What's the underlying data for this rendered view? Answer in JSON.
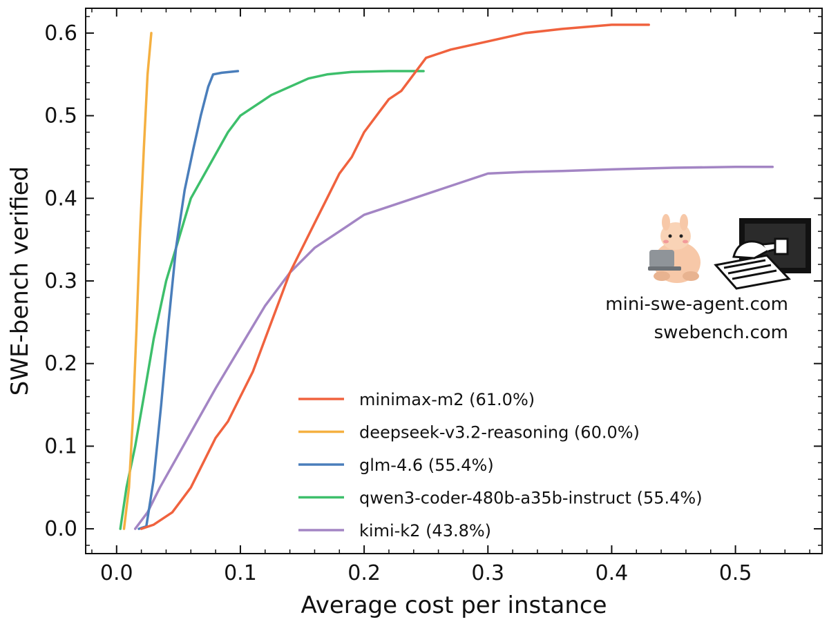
{
  "chart_data": {
    "type": "line",
    "xlabel": "Average cost per instance",
    "ylabel": "SWE-bench verified",
    "xlim": [
      -0.025,
      0.57
    ],
    "ylim": [
      -0.03,
      0.63
    ],
    "x_ticks": [
      "0.0",
      "0.1",
      "0.2",
      "0.3",
      "0.4",
      "0.5"
    ],
    "y_ticks": [
      "0.0",
      "0.1",
      "0.2",
      "0.3",
      "0.4",
      "0.5",
      "0.6"
    ],
    "grid": false,
    "legend_position": "bottom-right",
    "watermark": {
      "lines": [
        "mini-swe-agent.com",
        "swebench.com"
      ]
    },
    "series": [
      {
        "name": "minimax-m2 (61.0%)",
        "color": "#f0623e",
        "x": [
          0.02,
          0.03,
          0.045,
          0.06,
          0.07,
          0.08,
          0.09,
          0.1,
          0.11,
          0.12,
          0.13,
          0.14,
          0.15,
          0.16,
          0.17,
          0.18,
          0.19,
          0.2,
          0.21,
          0.22,
          0.23,
          0.24,
          0.25,
          0.27,
          0.3,
          0.33,
          0.36,
          0.4,
          0.43
        ],
        "y": [
          0.0,
          0.005,
          0.02,
          0.05,
          0.08,
          0.11,
          0.13,
          0.16,
          0.19,
          0.23,
          0.27,
          0.31,
          0.34,
          0.37,
          0.4,
          0.43,
          0.45,
          0.48,
          0.5,
          0.52,
          0.53,
          0.55,
          0.57,
          0.58,
          0.59,
          0.6,
          0.605,
          0.61,
          0.61
        ]
      },
      {
        "name": "deepseek-v3.2-reasoning (60.0%)",
        "color": "#f5b041",
        "x": [
          0.006,
          0.01,
          0.013,
          0.016,
          0.019,
          0.022,
          0.025,
          0.028
        ],
        "y": [
          0.0,
          0.05,
          0.13,
          0.24,
          0.36,
          0.46,
          0.55,
          0.6
        ]
      },
      {
        "name": "glm-4.6 (55.4%)",
        "color": "#4a7ebb",
        "x": [
          0.018,
          0.024,
          0.03,
          0.036,
          0.042,
          0.048,
          0.055,
          0.062,
          0.068,
          0.074,
          0.078,
          0.085,
          0.098
        ],
        "y": [
          0.0,
          0.003,
          0.06,
          0.15,
          0.25,
          0.34,
          0.41,
          0.46,
          0.5,
          0.535,
          0.55,
          0.552,
          0.554
        ]
      },
      {
        "name": "qwen3-coder-480b-a35b-instruct (55.4%)",
        "color": "#3dbf6b",
        "x": [
          0.003,
          0.008,
          0.015,
          0.022,
          0.03,
          0.04,
          0.05,
          0.06,
          0.075,
          0.09,
          0.1,
          0.11,
          0.125,
          0.14,
          0.155,
          0.17,
          0.19,
          0.22,
          0.248
        ],
        "y": [
          0.0,
          0.05,
          0.1,
          0.16,
          0.23,
          0.3,
          0.35,
          0.4,
          0.44,
          0.48,
          0.5,
          0.51,
          0.525,
          0.535,
          0.545,
          0.55,
          0.553,
          0.554,
          0.554
        ]
      },
      {
        "name": "kimi-k2 (43.8%)",
        "color": "#a385c4",
        "x": [
          0.015,
          0.025,
          0.035,
          0.05,
          0.065,
          0.08,
          0.1,
          0.12,
          0.14,
          0.16,
          0.18,
          0.2,
          0.22,
          0.25,
          0.28,
          0.3,
          0.33,
          0.36,
          0.4,
          0.45,
          0.5,
          0.53
        ],
        "y": [
          0.0,
          0.02,
          0.05,
          0.09,
          0.13,
          0.17,
          0.22,
          0.27,
          0.31,
          0.34,
          0.36,
          0.38,
          0.39,
          0.405,
          0.42,
          0.43,
          0.432,
          0.433,
          0.435,
          0.437,
          0.438,
          0.438
        ]
      }
    ]
  }
}
